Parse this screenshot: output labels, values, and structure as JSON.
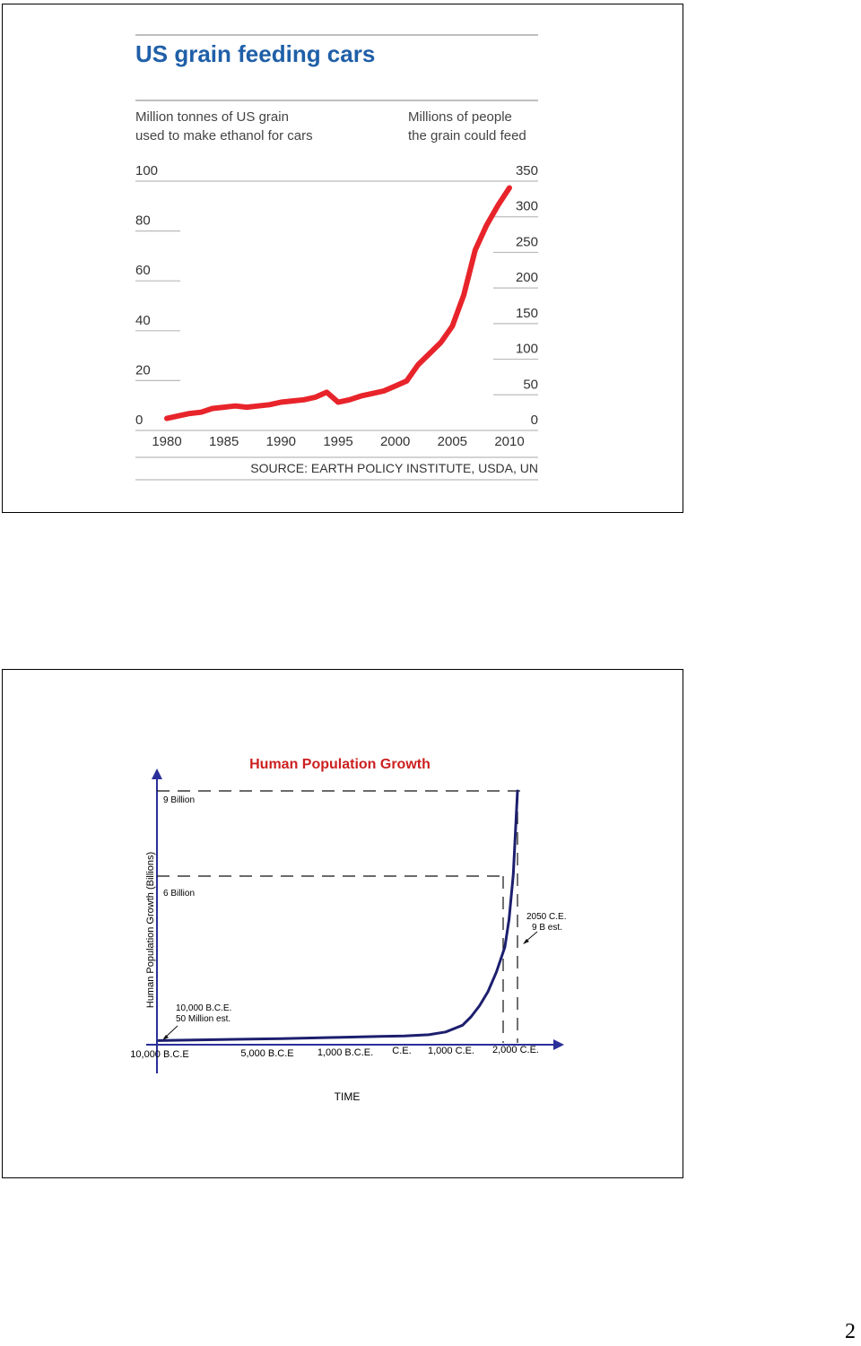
{
  "page": {
    "number": "2"
  },
  "chart_data": [
    {
      "type": "line",
      "title": "US grain feeding cars",
      "left_axis_label": "Million tonnes of US grain used to make ethanol for cars",
      "right_axis_label": "Millions of people the grain could feed",
      "left_ticks": [
        "100",
        "80",
        "60",
        "40",
        "20",
        "0"
      ],
      "right_ticks": [
        "350",
        "300",
        "250",
        "200",
        "150",
        "100",
        "50",
        "0"
      ],
      "x_ticks": [
        "1980",
        "1985",
        "1990",
        "1995",
        "2000",
        "2005",
        "2010"
      ],
      "source": "SOURCE: EARTH POLICY INSTITUTE, USDA, UN",
      "xlim": [
        1980,
        2010
      ],
      "ylim": [
        0,
        100
      ],
      "line_color": "#e8242b",
      "series": [
        {
          "x": [
            1980,
            1981,
            1982,
            1983,
            1984,
            1985,
            1986,
            1987,
            1988,
            1989,
            1990,
            1991,
            1992,
            1993,
            1994,
            1995,
            1996,
            1997,
            1998,
            1999,
            2000,
            2001,
            2002,
            2003,
            2004,
            2005,
            2006,
            2007,
            2008,
            2009,
            2010
          ],
          "y": [
            0.5,
            1.5,
            2.5,
            3.0,
            4.5,
            5.0,
            5.5,
            5.0,
            5.5,
            6.0,
            7.0,
            7.5,
            8.0,
            9.0,
            11.0,
            7.0,
            8.0,
            9.5,
            10.5,
            11.5,
            13.5,
            15.5,
            22.0,
            26.5,
            31.0,
            37.5,
            50.0,
            68.0,
            78.0,
            86.0,
            93.0
          ]
        }
      ]
    },
    {
      "type": "line",
      "title": "Human Population Growth",
      "ylabel": "Human Population Growth (Billions)",
      "xlabel": "TIME",
      "x_ticks": [
        "10,000 B.C.E",
        "5,000 B.C.E",
        "1,000 B.C.E.",
        "C.E.",
        "1,000 C.E.",
        "2,000 C.E."
      ],
      "ref_lines": [
        "9 Billion",
        "6 Billion"
      ],
      "annotations": [
        {
          "label": "10,000 B.C.E.",
          "text": "50 Million est."
        },
        {
          "label": "2050 C.E.",
          "text": "9 B est."
        }
      ],
      "line_color": "#1c1f6e",
      "title_color": "#cc2020",
      "series": [
        {
          "x": [
            -10000,
            -8000,
            -5000,
            -3000,
            -1000,
            0,
            1000,
            1200,
            1400,
            1500,
            1600,
            1700,
            1800,
            1900,
            1950,
            2000,
            2050
          ],
          "y": [
            0.05,
            0.08,
            0.12,
            0.16,
            0.2,
            0.22,
            0.26,
            0.36,
            0.6,
            0.9,
            1.3,
            1.8,
            2.5,
            3.4,
            4.4,
            6.0,
            9.0
          ]
        }
      ]
    }
  ]
}
